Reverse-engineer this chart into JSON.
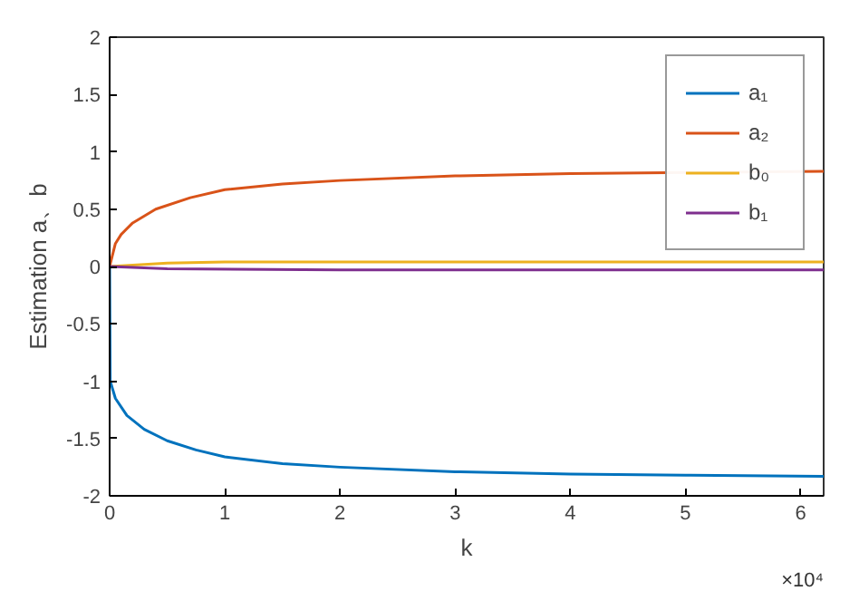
{
  "chart_data": {
    "type": "line",
    "xlabel": "k",
    "ylabel": "Estimation a、b",
    "annotations": [
      "×10⁴"
    ],
    "xlim": [
      0,
      6.2
    ],
    "ylim": [
      -2,
      2
    ],
    "xticks": [
      0,
      1,
      2,
      3,
      4,
      5,
      6
    ],
    "yticks": [
      -2,
      -1.5,
      -1,
      -0.5,
      0,
      0.5,
      1,
      1.5,
      2
    ],
    "grid": false,
    "legend": "top right",
    "marker": "none",
    "line_style": "solid",
    "series": [
      {
        "name": "a₁",
        "color": "#0072bd",
        "x": [
          0,
          0.005,
          0.05,
          0.15,
          0.3,
          0.5,
          0.75,
          1,
          1.5,
          2,
          3,
          4,
          5,
          6.2
        ],
        "values": [
          0,
          -1,
          -1.15,
          -1.3,
          -1.42,
          -1.52,
          -1.6,
          -1.66,
          -1.72,
          -1.75,
          -1.79,
          -1.81,
          -1.82,
          -1.83
        ]
      },
      {
        "name": "a₂",
        "color": "#d95319",
        "x": [
          0,
          0.05,
          0.1,
          0.2,
          0.4,
          0.7,
          1,
          1.5,
          2,
          3,
          4,
          6.2
        ],
        "values": [
          0,
          0.2,
          0.28,
          0.38,
          0.5,
          0.6,
          0.67,
          0.72,
          0.75,
          0.79,
          0.81,
          0.83
        ]
      },
      {
        "name": "b₀",
        "color": "#edb120",
        "x": [
          0,
          0.5,
          1,
          6.2
        ],
        "values": [
          0,
          0.03,
          0.04,
          0.04
        ]
      },
      {
        "name": "b₁",
        "color": "#7e2f8e",
        "x": [
          0,
          0.5,
          2,
          6.2
        ],
        "values": [
          0,
          -0.02,
          -0.03,
          -0.03
        ]
      }
    ]
  }
}
